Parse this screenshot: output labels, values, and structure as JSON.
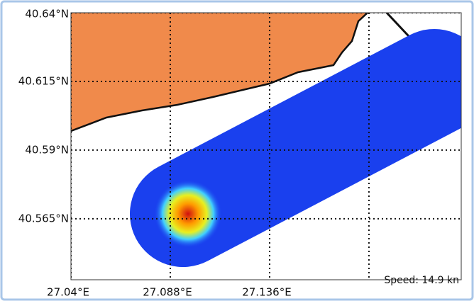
{
  "map": {
    "xlim": [
      27.04,
      27.2286
    ],
    "ylim": [
      40.5428,
      40.64
    ],
    "xticks": [
      {
        "value": 27.04,
        "label": "27.04°E"
      },
      {
        "value": 27.088,
        "label": "27.088°E"
      },
      {
        "value": 27.136,
        "label": "27.136°E"
      },
      {
        "value": 27.184,
        "label": null
      }
    ],
    "yticks": [
      {
        "value": 40.64,
        "label": "40.64°N"
      },
      {
        "value": 40.615,
        "label": "40.615°N"
      },
      {
        "value": 40.59,
        "label": "40.59°N"
      },
      {
        "value": 40.565,
        "label": "40.565°N"
      }
    ],
    "annotation": "Speed: 14.9 kn"
  }
}
